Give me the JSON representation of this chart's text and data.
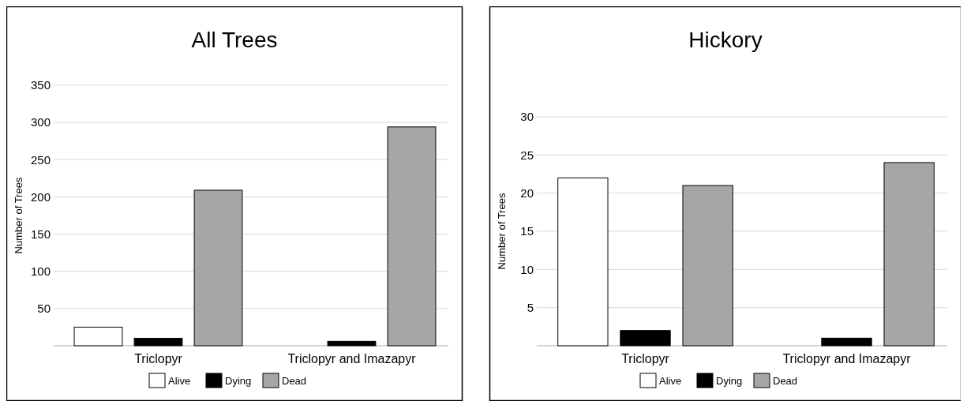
{
  "chart_data": [
    {
      "type": "bar",
      "title": "All Trees",
      "ylabel": "Number of Trees",
      "categories": [
        "Triclopyr",
        "Triclopyr and Imazapyr"
      ],
      "series": [
        {
          "name": "Alive",
          "color": "#ffffff",
          "values": [
            25,
            0
          ]
        },
        {
          "name": "Dying",
          "color": "#000000",
          "values": [
            10,
            6
          ]
        },
        {
          "name": "Dead",
          "color": "#a6a6a6",
          "values": [
            209,
            294
          ]
        }
      ],
      "ylim": [
        0,
        350
      ],
      "yticks": [
        {
          "value": 0,
          "label": null
        },
        50,
        100,
        150,
        200,
        250,
        300,
        350
      ],
      "grid": "y",
      "legend": "bottom"
    },
    {
      "type": "bar",
      "title": "Hickory",
      "ylabel": "Number of Trees",
      "categories": [
        "Triclopyr",
        "Triclopyr and Imazapyr"
      ],
      "series": [
        {
          "name": "Alive",
          "color": "#ffffff",
          "values": [
            22,
            0
          ]
        },
        {
          "name": "Dying",
          "color": "#000000",
          "values": [
            2,
            1
          ]
        },
        {
          "name": "Dead",
          "color": "#a6a6a6",
          "values": [
            21,
            24
          ]
        }
      ],
      "ylim": [
        0,
        30
      ],
      "yticks": [
        {
          "value": 0,
          "label": null
        },
        5,
        10,
        15,
        20,
        25,
        30
      ],
      "grid": "y",
      "legend": "bottom"
    }
  ]
}
